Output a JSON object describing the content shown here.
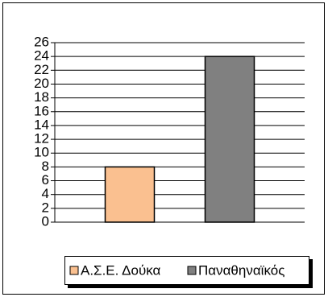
{
  "chart_data": {
    "type": "bar",
    "categories": [
      null
    ],
    "series": [
      {
        "name": "Α.Σ.Ε. Δούκα",
        "color": "#fac090",
        "values": [
          8
        ]
      },
      {
        "name": "Παναθηναϊκός",
        "color": "#808080",
        "values": [
          24
        ]
      }
    ],
    "ylim": [
      0,
      26
    ],
    "yticks": [
      0,
      2,
      4,
      6,
      8,
      10,
      12,
      14,
      16,
      18,
      20,
      22,
      24,
      26
    ],
    "grid": true,
    "legend": "bottom"
  }
}
